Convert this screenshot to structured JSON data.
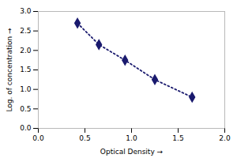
{
  "chart_data": {
    "type": "line",
    "xlabel": "Optical Density",
    "ylabel": "Log. of concentration",
    "x": [
      0.42,
      0.65,
      0.93,
      1.25,
      1.65
    ],
    "values": [
      2.7,
      2.15,
      1.75,
      1.25,
      0.8
    ],
    "color": "#1a1a6e",
    "marker": "diamond",
    "line_style": "dotted",
    "xlim": [
      0,
      2
    ],
    "ylim": [
      0,
      3
    ],
    "xticks": [
      {
        "value": 0,
        "label": "0.0"
      },
      0.5,
      {
        "value": 1,
        "label": "1.0"
      },
      1.5,
      {
        "value": 2,
        "label": "2.0"
      }
    ],
    "yticks": [
      {
        "value": 0,
        "label": "0.0"
      },
      0.5,
      {
        "value": 1,
        "label": "1.0"
      },
      1.5,
      {
        "value": 2,
        "label": "2.0"
      },
      2.5,
      {
        "value": 3,
        "label": "3.0"
      }
    ],
    "grid": false
  }
}
